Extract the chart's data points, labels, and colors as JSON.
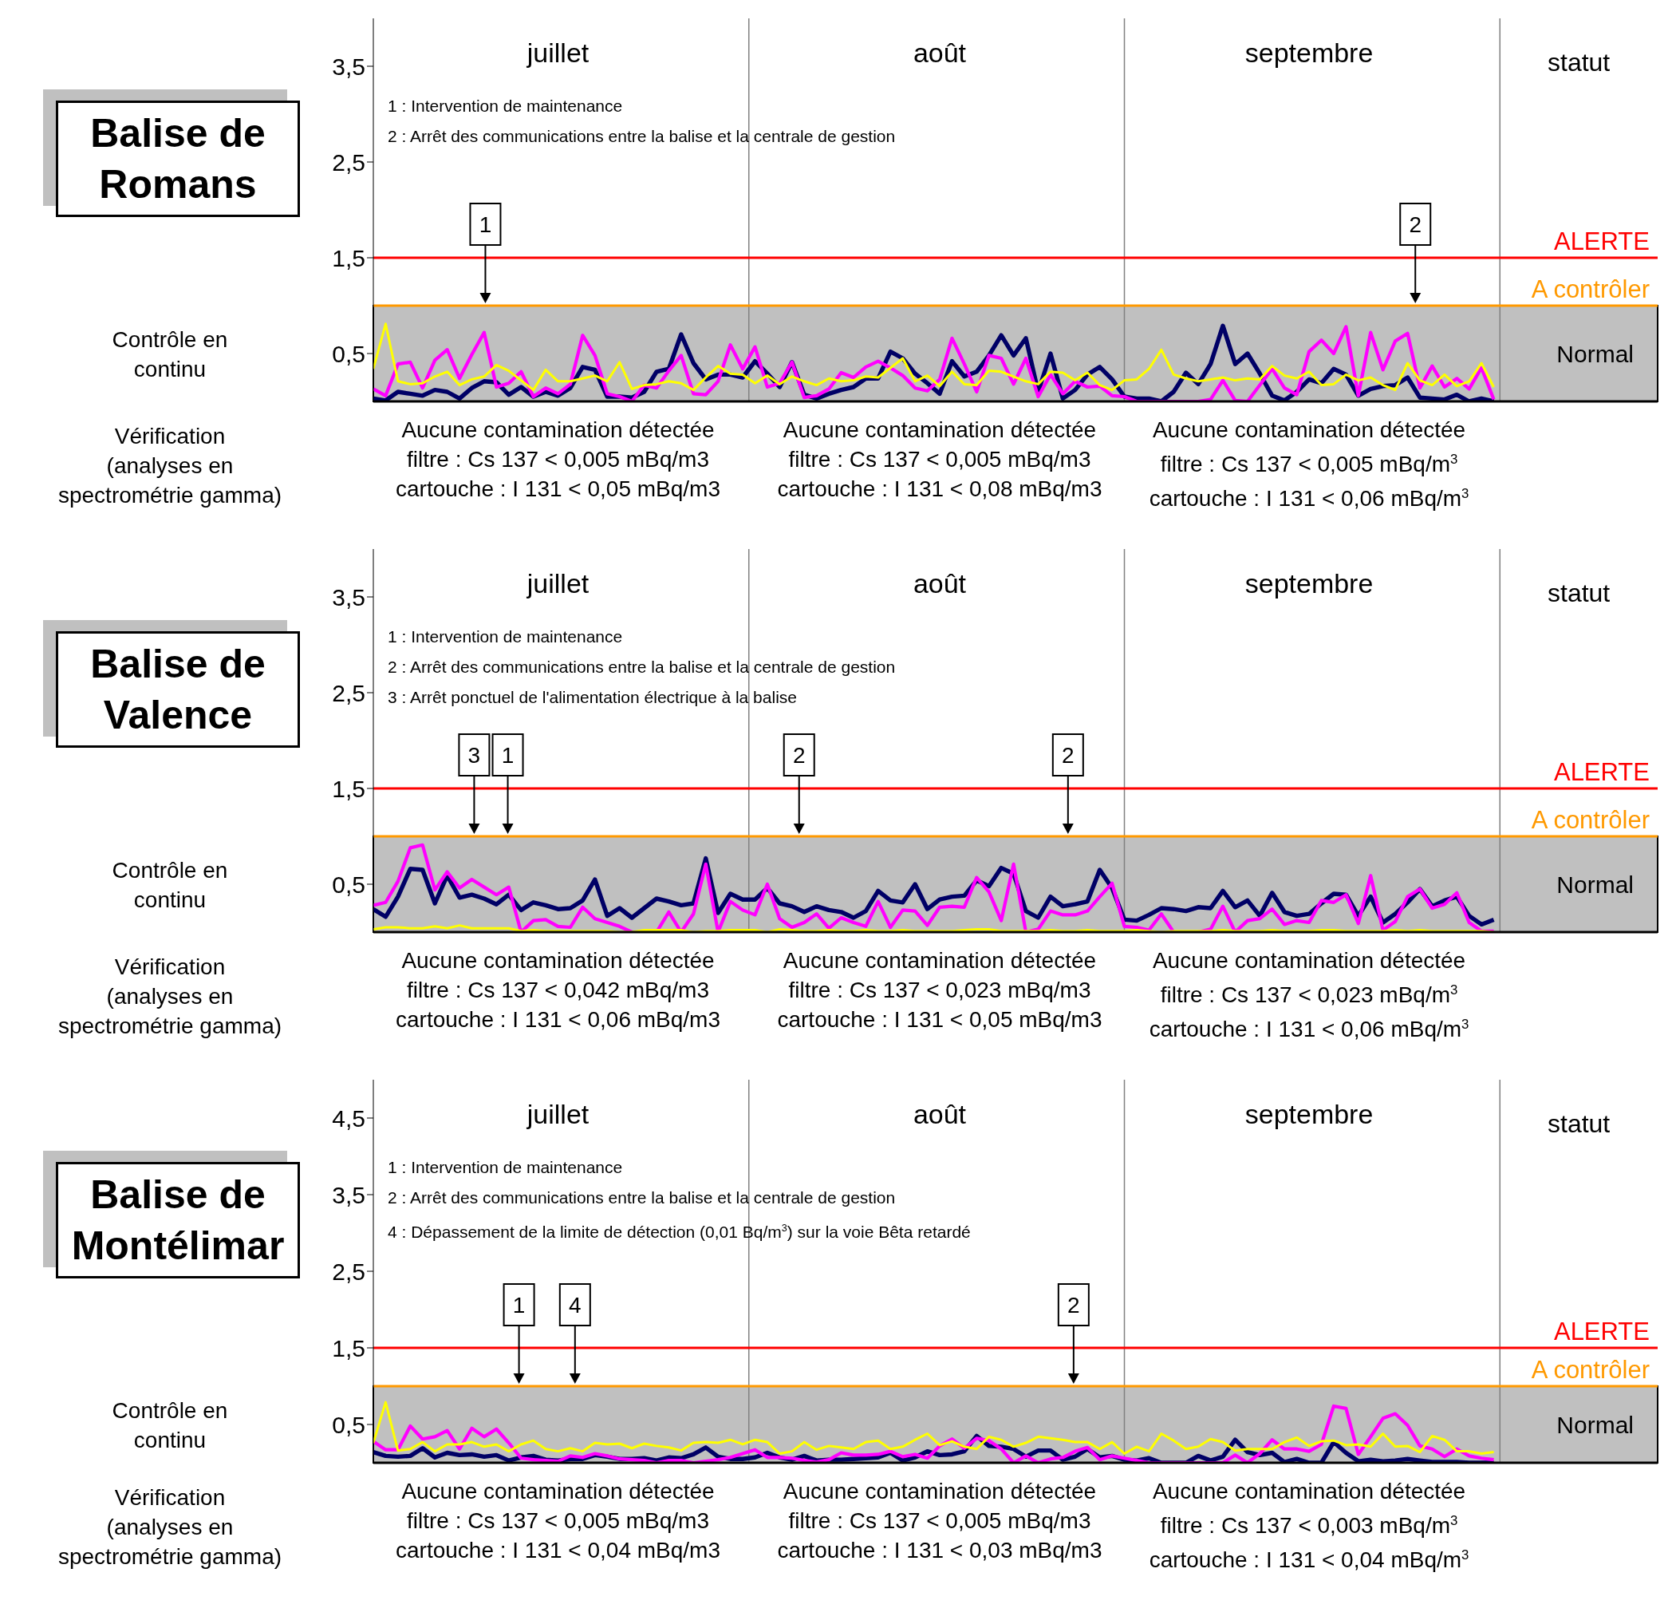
{
  "chart_data": [
    {
      "type": "line",
      "title": "Balise de Romans",
      "categories": [
        null,
        null,
        null,
        null,
        null,
        null,
        null,
        null,
        null,
        null,
        null,
        null,
        null,
        null,
        null,
        "juillet",
        null,
        null,
        null,
        null,
        null,
        null,
        null,
        null,
        null,
        null,
        null,
        null,
        null,
        null,
        null,
        null,
        null,
        null,
        null,
        null,
        null,
        null,
        null,
        null,
        null,
        null,
        null,
        null,
        null,
        null,
        "août",
        null,
        null,
        null,
        null,
        null,
        null,
        null,
        null,
        null,
        null,
        null,
        null,
        null,
        null,
        null,
        null,
        null,
        null,
        null,
        null,
        null,
        null,
        null,
        null,
        null,
        null,
        null,
        null,
        null,
        "septembre",
        null,
        null,
        null,
        null,
        null,
        null,
        null,
        null,
        null,
        null,
        null,
        null,
        null,
        null,
        null
      ],
      "series": [
        {
          "color": "#000066",
          "values": [
            0.03,
            0.01,
            0.1,
            0.08,
            0.06,
            0.12,
            0.1,
            0.03,
            0.14,
            0.21,
            0.2,
            0.07,
            0.15,
            0.05,
            0.1,
            0.06,
            0.14,
            0.36,
            0.33,
            0.05,
            0.05,
            0.04,
            0.1,
            0.31,
            0.34,
            0.7,
            0.4,
            0.23,
            0.28,
            0.28,
            0.25,
            0.42,
            0.29,
            0.15,
            0.41,
            0.07,
            0.03,
            0.08,
            0.12,
            0.15,
            0.24,
            0.24,
            0.52,
            0.45,
            0.29,
            0.19,
            0.08,
            0.42,
            0.26,
            0.31,
            0.48,
            0.69,
            0.48,
            0.66,
            0.1,
            0.5,
            0.03,
            0.12,
            0.28,
            0.36,
            0.23,
            0.05,
            0.03,
            0.03,
            0,
            0.1,
            0.3,
            0.18,
            0.39,
            0.79,
            0.39,
            0.5,
            0.29,
            0.06,
            0.01,
            0.1,
            0.23,
            0.19,
            0.34,
            0.28,
            0.06,
            0.13,
            0.16,
            0.17,
            0.25,
            0.04,
            0.03,
            0.02,
            0.07,
            0,
            0.03,
            0
          ]
        },
        {
          "color": "#ff00ff",
          "values": [
            0.13,
            0.06,
            0.39,
            0.41,
            0.14,
            0.43,
            0.54,
            0.24,
            0.49,
            0.72,
            0.15,
            0.19,
            0.31,
            0.05,
            0.14,
            0.08,
            0.18,
            0.69,
            0.48,
            0.08,
            0.05,
            0,
            0.17,
            0.14,
            0.32,
            0.48,
            0.08,
            0.07,
            0.21,
            0.59,
            0.34,
            0.57,
            0.15,
            0.19,
            0.41,
            0.04,
            0.06,
            0.13,
            0.3,
            0.25,
            0.36,
            0.42,
            0.35,
            0.27,
            0.14,
            0.11,
            0.23,
            0.66,
            0.39,
            0.1,
            0.48,
            0.45,
            0.18,
            0.45,
            0.05,
            0.28,
            0.08,
            0.21,
            0.15,
            0.16,
            0.06,
            0.05,
            0,
            0,
            0,
            0,
            0,
            0,
            0.02,
            0.22,
            0.01,
            0,
            0.17,
            0.34,
            0.14,
            0.07,
            0.52,
            0.64,
            0.5,
            0.78,
            0.06,
            0.72,
            0.33,
            0.63,
            0.71,
            0.14,
            0.37,
            0.15,
            0.24,
            0.13,
            0.35,
            0.02
          ]
        },
        {
          "color": "#ffff00",
          "values": [
            0.34,
            0.81,
            0.21,
            0.18,
            0.19,
            0.26,
            0.31,
            0.17,
            0.23,
            0.26,
            0.38,
            0.32,
            0.22,
            0.12,
            0.33,
            0.21,
            0.21,
            0.24,
            0.27,
            0.21,
            0.41,
            0.13,
            0.17,
            0.18,
            0.21,
            0.19,
            0.12,
            0.25,
            0.37,
            0.29,
            0.28,
            0.19,
            0.27,
            0.18,
            0.26,
            0.21,
            0.17,
            0.24,
            0.21,
            0.22,
            0.26,
            0.25,
            0.35,
            0.45,
            0.21,
            0.27,
            0.16,
            0.31,
            0.18,
            0.17,
            0.32,
            0.31,
            0.26,
            0.21,
            0.18,
            0.31,
            0.3,
            0.22,
            0.3,
            0.17,
            0.12,
            0.22,
            0.23,
            0.34,
            0.54,
            0.28,
            0.24,
            0.21,
            0.23,
            0.25,
            0.22,
            0.24,
            0.23,
            0.37,
            0.27,
            0.24,
            0.31,
            0.17,
            0.18,
            0.28,
            0.22,
            0.25,
            0.17,
            0.12,
            0.4,
            0.22,
            0.17,
            0.28,
            0.16,
            0.21,
            0.4,
            0.15
          ]
        }
      ],
      "ylim": [
        0,
        4
      ],
      "yticks": [
        {
          "value": 0.5,
          "label": "0,5"
        },
        {
          "value": 1.5,
          "label": "1,5"
        },
        {
          "value": 2.5,
          "label": "2,5"
        },
        {
          "value": 3.5,
          "label": "3,5"
        }
      ],
      "bands": [
        {
          "axis": "y",
          "from": 0,
          "to": 1,
          "label": "Normal",
          "color": "#c0c0c0"
        }
      ],
      "ref_lines": [
        {
          "axis": "y",
          "value": 1.5,
          "label": "ALERTE",
          "color": "#ff0000"
        },
        {
          "axis": "y",
          "value": 1,
          "label": "A contrôler",
          "color": "#ff9900"
        }
      ],
      "annotations": [
        "Contrôle en continu",
        "Vérification\n(analyses en\nspectrométrie gamma)",
        "statut",
        "Aucune contamination détectée\nfiltre : Cs 137 < 0,005 mBq/m3\ncartouche : I 131 < 0,05 mBq/m3",
        "Aucune contamination détectée\nfiltre : Cs 137 < 0,005 mBq/m3\ncartouche : I 131 < 0,08 mBq/m3",
        "Aucune contamination détectée\nfiltre : Cs 137 < 0,005 mBq/m$^{3}$\ncartouche : I 131 < 0,06 mBq/m$^{3}$",
        "1 : Intervention de maintenance",
        "2 : Arrêt des communications entre la balise et la centrale de gestion",
        "1",
        "2"
      ]
    },
    {
      "type": "line",
      "title": "Balise de Valence",
      "categories": [
        null,
        null,
        null,
        null,
        null,
        null,
        null,
        null,
        null,
        null,
        null,
        null,
        null,
        null,
        null,
        "juillet",
        null,
        null,
        null,
        null,
        null,
        null,
        null,
        null,
        null,
        null,
        null,
        null,
        null,
        null,
        null,
        null,
        null,
        null,
        null,
        null,
        null,
        null,
        null,
        null,
        null,
        null,
        null,
        null,
        null,
        null,
        "août",
        null,
        null,
        null,
        null,
        null,
        null,
        null,
        null,
        null,
        null,
        null,
        null,
        null,
        null,
        null,
        null,
        null,
        null,
        null,
        null,
        null,
        null,
        null,
        null,
        null,
        null,
        null,
        null,
        null,
        "septembre",
        null,
        null,
        null,
        null,
        null,
        null,
        null,
        null,
        null,
        null,
        null,
        null,
        null,
        null,
        null
      ],
      "series": [
        {
          "color": "#000066",
          "values": [
            0.24,
            0.16,
            0.37,
            0.66,
            0.65,
            0.3,
            0.59,
            0.36,
            0.39,
            0.35,
            0.29,
            0.39,
            0.23,
            0.31,
            0.28,
            0.24,
            0.25,
            0.33,
            0.55,
            0.17,
            0.25,
            0.15,
            0.25,
            0.35,
            0.32,
            0.28,
            0.3,
            0.77,
            0.2,
            0.4,
            0.34,
            0.34,
            0.46,
            0.3,
            0.27,
            0.21,
            0.27,
            0.23,
            0.21,
            0.15,
            0.22,
            0.43,
            0.33,
            0.31,
            0.5,
            0.24,
            0.34,
            0.37,
            0.38,
            0.54,
            0.48,
            0.67,
            0.61,
            0.22,
            0.15,
            0.37,
            0.27,
            0.29,
            0.32,
            0.65,
            0.46,
            0.13,
            0.12,
            0.18,
            0.25,
            0.24,
            0.22,
            0.26,
            0.25,
            0.43,
            0.26,
            0.33,
            0.17,
            0.41,
            0.21,
            0.17,
            0.19,
            0.3,
            0.4,
            0.39,
            0.17,
            0.37,
            0.1,
            0.19,
            0.31,
            0.45,
            0.27,
            0.33,
            0.37,
            0.17,
            0.08,
            0.13
          ]
        },
        {
          "color": "#ff00ff",
          "values": [
            0.28,
            0.31,
            0.53,
            0.88,
            0.91,
            0.44,
            0.63,
            0.46,
            0.55,
            0.47,
            0.39,
            0.47,
            0,
            0.12,
            0.13,
            0.06,
            0.05,
            0.26,
            0.14,
            0.1,
            0.06,
            0,
            0,
            0,
            0.21,
            0,
            0.19,
            0.71,
            0,
            0.32,
            0.23,
            0.18,
            0.5,
            0.14,
            0.05,
            0.1,
            0.19,
            0.04,
            0.15,
            0.1,
            0.06,
            0.32,
            0.05,
            0.23,
            0.22,
            0.07,
            0.26,
            0.27,
            0.26,
            0.57,
            0.42,
            0.12,
            0.71,
            0,
            0.03,
            0.22,
            0.18,
            0.18,
            0.22,
            0.37,
            0.51,
            0.06,
            0.05,
            0.02,
            0.19,
            0,
            0,
            0,
            0.03,
            0.27,
            0,
            0.12,
            0.14,
            0.24,
            0.08,
            0.12,
            0.1,
            0.33,
            0.31,
            0.39,
            0.09,
            0.59,
            0.02,
            0.11,
            0.37,
            0.45,
            0.25,
            0.29,
            0.41,
            0.1,
            0.01,
            0.01
          ]
        },
        {
          "color": "#ffff00",
          "values": [
            0.03,
            0.05,
            0.05,
            0.04,
            0.04,
            0.06,
            0.04,
            0.07,
            0.04,
            0.04,
            0.04,
            0.04,
            0.01,
            0.02,
            0.01,
            0.01,
            0.01,
            0.01,
            0.01,
            0.01,
            0,
            0,
            0.02,
            0.02,
            0.02,
            0.02,
            0,
            0.01,
            0.01,
            0.02,
            0.02,
            0.02,
            0,
            0.03,
            0.02,
            0.01,
            0.01,
            0.02,
            0.01,
            0.01,
            0.02,
            0.01,
            0.01,
            0.02,
            0.01,
            0.01,
            0.01,
            0.01,
            0.02,
            0.03,
            0.03,
            0.01,
            0.01,
            0.01,
            0.01,
            0.02,
            0.01,
            0.01,
            0.02,
            0.01,
            0.01,
            0.01,
            0.02,
            0.01,
            0,
            0.01,
            0.01,
            0.01,
            0.01,
            0.02,
            0.01,
            0.01,
            0.01,
            0.02,
            0.01,
            0.01,
            0.01,
            0.02,
            0.02,
            0.01,
            0.01,
            0.01,
            0.01,
            0.02,
            0.01,
            0.02,
            0.01,
            0.01,
            0.01,
            0.01,
            0.01,
            0
          ]
        }
      ],
      "ylim": [
        0,
        4
      ],
      "yticks": [
        {
          "value": 0.5,
          "label": "0,5"
        },
        {
          "value": 1.5,
          "label": "1,5"
        },
        {
          "value": 2.5,
          "label": "2,5"
        },
        {
          "value": 3.5,
          "label": "3,5"
        }
      ],
      "bands": [
        {
          "axis": "y",
          "from": 0,
          "to": 1,
          "label": "Normal",
          "color": "#c0c0c0"
        }
      ],
      "ref_lines": [
        {
          "axis": "y",
          "value": 1.5,
          "label": "ALERTE",
          "color": "#ff0000"
        },
        {
          "axis": "y",
          "value": 1,
          "label": "A contrôler",
          "color": "#ff9900"
        }
      ],
      "annotations": [
        "Contrôle en continu",
        "Vérification\n(analyses en\nspectrométrie gamma)",
        "statut",
        "Aucune contamination détectée\nfiltre : Cs 137 < 0,042 mBq/m3\ncartouche : I 131 < 0,06 mBq/m3",
        "Aucune contamination détectée\nfiltre : Cs 137 < 0,023 mBq/m3\ncartouche : I 131 < 0,05 mBq/m3",
        "Aucune contamination détectée\nfiltre : Cs 137 < 0,023 mBq/m$^{3}$\ncartouche : I 131 < 0,06 mBq/m$^{3}$",
        "1 : Intervention de maintenance",
        "2 : Arrêt des communications entre la balise et la centrale de gestion",
        "3 : Arrêt ponctuel de l'alimentation électrique à la balise",
        "3",
        "1",
        "2",
        "2"
      ]
    },
    {
      "type": "line",
      "title": "Balise de Montélimar",
      "categories": [
        null,
        null,
        null,
        null,
        null,
        null,
        null,
        null,
        null,
        null,
        null,
        null,
        null,
        null,
        null,
        "juillet",
        null,
        null,
        null,
        null,
        null,
        null,
        null,
        null,
        null,
        null,
        null,
        null,
        null,
        null,
        null,
        null,
        null,
        null,
        null,
        null,
        null,
        null,
        null,
        null,
        null,
        null,
        null,
        null,
        null,
        null,
        "août",
        null,
        null,
        null,
        null,
        null,
        null,
        null,
        null,
        null,
        null,
        null,
        null,
        null,
        null,
        null,
        null,
        null,
        null,
        null,
        null,
        null,
        null,
        null,
        null,
        null,
        null,
        null,
        null,
        null,
        "septembre",
        null,
        null,
        null,
        null,
        null,
        null,
        null,
        null,
        null,
        null,
        null,
        null,
        null,
        null,
        null
      ],
      "series": [
        {
          "color": "#000066",
          "values": [
            0.14,
            0.09,
            0.08,
            0.09,
            0.19,
            0.07,
            0.13,
            0.1,
            0.11,
            0.08,
            0.1,
            0.03,
            0.07,
            0.09,
            0.04,
            0.03,
            0.05,
            0.05,
            0.1,
            0.08,
            0.05,
            0.05,
            0.06,
            0.03,
            0.07,
            0.06,
            0.11,
            0.2,
            0.08,
            0.05,
            0.05,
            0.07,
            0.13,
            0.07,
            0.04,
            0.09,
            0.03,
            0.04,
            0.04,
            0.05,
            0.06,
            0.07,
            0.13,
            0.03,
            0.07,
            0.15,
            0.1,
            0.11,
            0.15,
            0.35,
            0.22,
            0.21,
            0.18,
            0.08,
            0.16,
            0.16,
            0.04,
            0.08,
            0.18,
            0.07,
            0.09,
            0.04,
            0.03,
            0.06,
            0,
            0,
            0,
            0.09,
            0.03,
            0.08,
            0.3,
            0.14,
            0.1,
            0.13,
            0.01,
            0.05,
            0,
            0,
            0.27,
            0.13,
            0.02,
            0.04,
            0.02,
            0.03,
            0.05,
            0.03,
            0.01,
            0.01,
            0.01,
            0,
            0,
            0
          ]
        },
        {
          "color": "#ff00ff",
          "values": [
            0.28,
            0.17,
            0.17,
            0.48,
            0.31,
            0.34,
            0.42,
            0.18,
            0.45,
            0.34,
            0.44,
            0.26,
            0.06,
            0.04,
            0.03,
            0.02,
            0.09,
            0.07,
            0.12,
            0.09,
            0.05,
            0.04,
            0.03,
            0,
            0.03,
            0.03,
            0,
            0.02,
            0.04,
            0.07,
            0.12,
            0.17,
            0.07,
            0.07,
            0.06,
            0.03,
            0.01,
            0.04,
            0.13,
            0.1,
            0.1,
            0.11,
            0.15,
            0.08,
            0.11,
            0.06,
            0.22,
            0.31,
            0.19,
            0.32,
            0.29,
            0.18,
            0,
            0.09,
            0,
            0.05,
            0.07,
            0.15,
            0.2,
            0.04,
            0.09,
            0.06,
            0.03,
            0,
            0,
            0,
            0,
            0,
            0,
            0,
            0.1,
            0,
            0.12,
            0.3,
            0.18,
            0.18,
            0.15,
            0.24,
            0.74,
            0.71,
            0.11,
            0.34,
            0.58,
            0.64,
            0.49,
            0.22,
            0.18,
            0.08,
            0.18,
            0.09,
            0.06,
            0.04
          ]
        },
        {
          "color": "#ffff00",
          "values": [
            0.26,
            0.79,
            0.16,
            0.18,
            0.27,
            0.15,
            0.24,
            0.24,
            0.27,
            0.21,
            0.24,
            0.15,
            0.24,
            0.29,
            0.18,
            0.15,
            0.19,
            0.15,
            0.26,
            0.24,
            0.25,
            0.19,
            0.25,
            0.22,
            0.2,
            0.16,
            0.26,
            0.27,
            0.26,
            0.3,
            0.24,
            0.3,
            0.27,
            0.12,
            0.15,
            0.27,
            0.17,
            0.22,
            0.2,
            0.18,
            0.27,
            0.29,
            0.18,
            0.21,
            0.3,
            0.38,
            0.23,
            0.28,
            0.21,
            0.18,
            0.34,
            0.3,
            0.21,
            0.26,
            0.34,
            0.32,
            0.3,
            0.27,
            0.27,
            0.18,
            0.27,
            0.12,
            0.21,
            0.15,
            0.38,
            0.29,
            0.18,
            0.21,
            0.31,
            0.27,
            0.16,
            0.18,
            0.18,
            0.18,
            0.27,
            0.33,
            0.22,
            0.28,
            0.29,
            0.23,
            0.24,
            0.21,
            0.38,
            0.21,
            0.22,
            0.14,
            0.35,
            0.3,
            0.15,
            0.15,
            0.12,
            0.14
          ]
        }
      ],
      "ylim": [
        0,
        5
      ],
      "yticks": [
        {
          "value": 0.5,
          "label": "0,5"
        },
        {
          "value": 1.5,
          "label": "1,5"
        },
        {
          "value": 2.5,
          "label": "2,5"
        },
        {
          "value": 3.5,
          "label": "3,5"
        },
        {
          "value": 4.5,
          "label": "4,5"
        }
      ],
      "bands": [
        {
          "axis": "y",
          "from": 0,
          "to": 1,
          "label": "Normal",
          "color": "#c0c0c0"
        }
      ],
      "ref_lines": [
        {
          "axis": "y",
          "value": 1.5,
          "label": "ALERTE",
          "color": "#ff0000"
        },
        {
          "axis": "y",
          "value": 1,
          "label": "A contrôler",
          "color": "#ff9900"
        }
      ],
      "annotations": [
        "Contrôle en continu",
        "Vérification\n(analyses en\nspectrométrie gamma)",
        "statut",
        "Aucune contamination détectée\nfiltre : Cs 137 < 0,005 mBq/m3\ncartouche : I 131 < 0,04 mBq/m3",
        "Aucune contamination détectée\nfiltre : Cs 137 < 0,005 mBq/m3\ncartouche : I 131 < 0,03 mBq/m3",
        "Aucune contamination détectée\nfiltre : Cs 137 < 0,003 mBq/m$^{3}$\ncartouche : I 131 < 0,04 mBq/m$^{3}$",
        "1 : Intervention de maintenance",
        "2 : Arrêt des communications entre la balise et la centrale de gestion",
        "4 : Dépassement de la limite de détection (0,01 Bq/m$^{3}$) sur la voie Bêta retardé",
        "1",
        "4",
        "2"
      ]
    }
  ]
}
